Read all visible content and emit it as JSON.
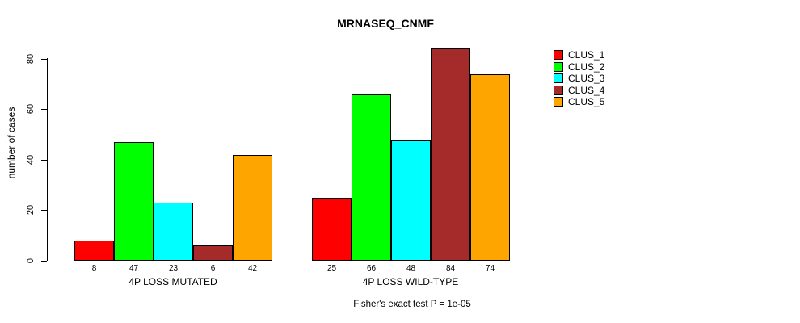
{
  "chart_data": {
    "type": "bar",
    "title": "MRNASEQ_CNMF",
    "ylabel": "number of cases",
    "xlabel": "",
    "categories": [
      "4P LOSS MUTATED",
      "4P LOSS WILD-TYPE"
    ],
    "series": [
      {
        "name": "CLUS_1",
        "color": "#FF0000",
        "values": [
          8,
          25
        ]
      },
      {
        "name": "CLUS_2",
        "color": "#00FF00",
        "values": [
          47,
          66
        ]
      },
      {
        "name": "CLUS_3",
        "color": "#00FFFF",
        "values": [
          23,
          48
        ]
      },
      {
        "name": "CLUS_4",
        "color": "#A52A2A",
        "values": [
          6,
          84
        ]
      },
      {
        "name": "CLUS_5",
        "color": "#FFA500",
        "values": [
          42,
          74
        ]
      }
    ],
    "ylim": [
      0,
      80
    ],
    "yticks": [
      0,
      20,
      40,
      60,
      80
    ],
    "grid": false,
    "show_values_under_bars": true,
    "legend_position": "right",
    "legend_entries": [
      "CLUS_1",
      "CLUS_2",
      "CLUS_3",
      "CLUS_4",
      "CLUS_5"
    ],
    "annotation": "Fisher's exact test P = 1e-05"
  }
}
